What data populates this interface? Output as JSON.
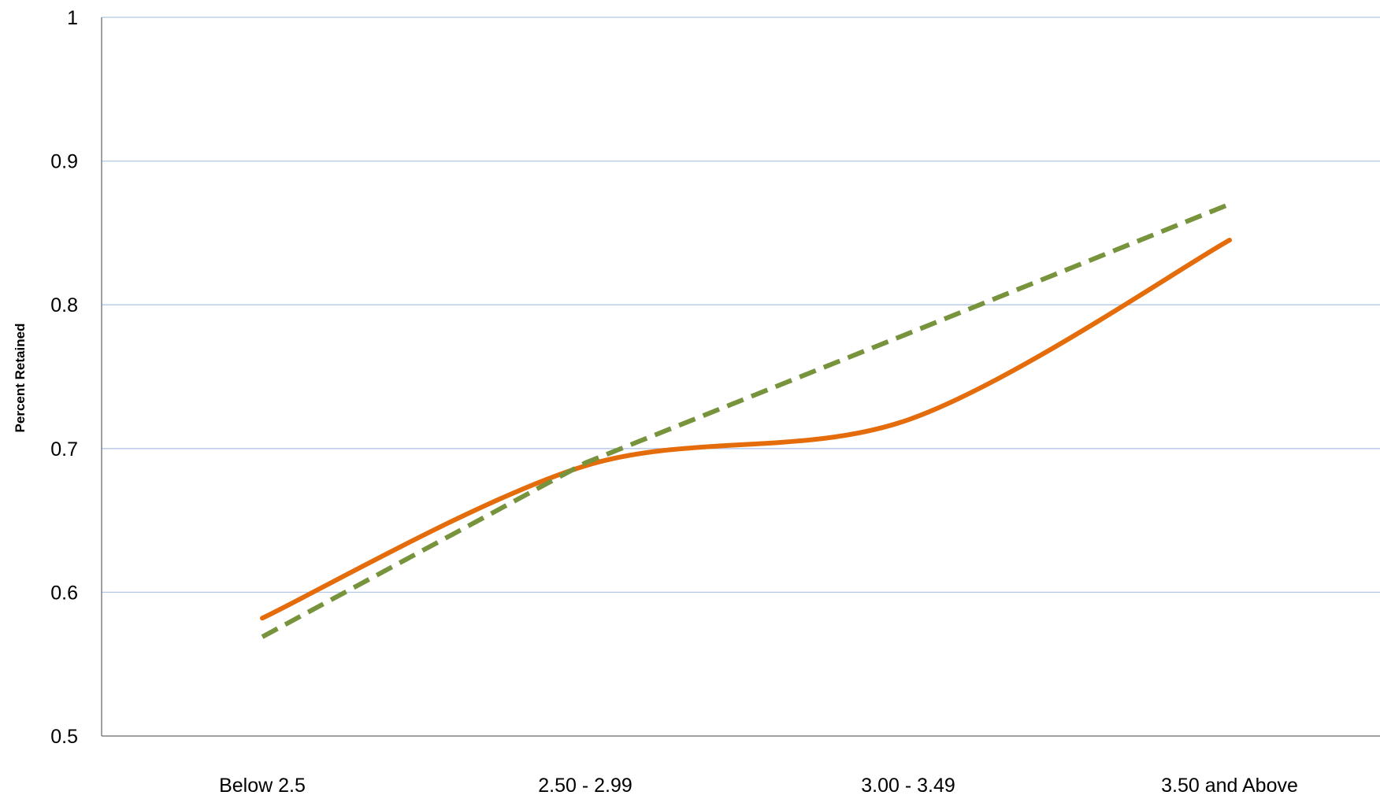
{
  "chart_data": {
    "type": "line",
    "title": "",
    "xlabel": "",
    "ylabel": "Percent Retained",
    "categories": [
      "Below 2.5",
      "2.50 - 2.99",
      "3.00 - 3.49",
      "3.50 and Above"
    ],
    "ylim": [
      0.5,
      1
    ],
    "yticks": [
      "0.5",
      "0.6",
      "0.7",
      "0.8",
      "0.9",
      "1"
    ],
    "grid": true,
    "legend": "none",
    "series": [
      {
        "values": [
          0.582,
          0.688,
          0.72,
          0.845
        ],
        "color": "#E46C0A",
        "style": "solid-smooth"
      },
      {
        "values": [
          0.569,
          0.69,
          0.78,
          0.87
        ],
        "color": "#77933C",
        "style": "dashed"
      }
    ]
  }
}
